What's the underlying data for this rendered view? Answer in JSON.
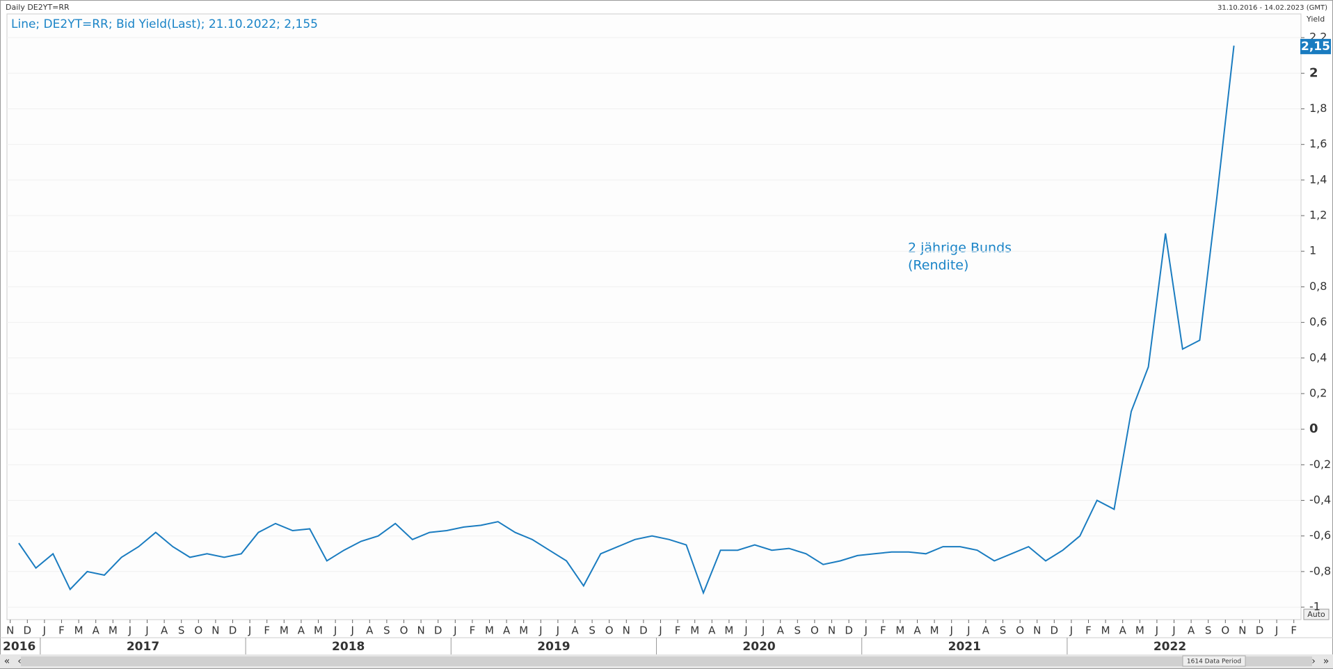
{
  "chart_data": {
    "type": "line",
    "header": "Daily DE2YT=RR",
    "date_range": "31.10.2016 - 14.02.2023 (GMT)",
    "title": "Line; DE2YT=RR; Bid Yield(Last); 21.10.2022; 2,155",
    "y_label": "Yield",
    "annotation": [
      "2 jährige Bunds",
      "(Rendite)"
    ],
    "auto_button": "Auto",
    "data_period": "1614 Data Period",
    "color": "#1a7cc0",
    "x": [
      "2016-11",
      "2016-12",
      "2017-01",
      "2017-02",
      "2017-03",
      "2017-04",
      "2017-05",
      "2017-06",
      "2017-07",
      "2017-08",
      "2017-09",
      "2017-10",
      "2017-11",
      "2017-12",
      "2018-01",
      "2018-02",
      "2018-03",
      "2018-04",
      "2018-05",
      "2018-06",
      "2018-07",
      "2018-08",
      "2018-09",
      "2018-10",
      "2018-11",
      "2018-12",
      "2019-01",
      "2019-02",
      "2019-03",
      "2019-04",
      "2019-05",
      "2019-06",
      "2019-07",
      "2019-08",
      "2019-09",
      "2019-10",
      "2019-11",
      "2019-12",
      "2020-01",
      "2020-02",
      "2020-03",
      "2020-04",
      "2020-05",
      "2020-06",
      "2020-07",
      "2020-08",
      "2020-09",
      "2020-10",
      "2020-11",
      "2020-12",
      "2021-01",
      "2021-02",
      "2021-03",
      "2021-04",
      "2021-05",
      "2021-06",
      "2021-07",
      "2021-08",
      "2021-09",
      "2021-10",
      "2021-11",
      "2021-12",
      "2022-01",
      "2022-02",
      "2022-03",
      "2022-04",
      "2022-05",
      "2022-06",
      "2022-07",
      "2022-08",
      "2022-09",
      "2022-10"
    ],
    "values": [
      -0.64,
      -0.78,
      -0.7,
      -0.9,
      -0.8,
      -0.82,
      -0.72,
      -0.66,
      -0.58,
      -0.66,
      -0.72,
      -0.7,
      -0.72,
      -0.7,
      -0.58,
      -0.53,
      -0.57,
      -0.56,
      -0.74,
      -0.68,
      -0.63,
      -0.6,
      -0.53,
      -0.62,
      -0.58,
      -0.57,
      -0.55,
      -0.54,
      -0.52,
      -0.58,
      -0.62,
      -0.68,
      -0.74,
      -0.88,
      -0.7,
      -0.66,
      -0.62,
      -0.6,
      -0.62,
      -0.65,
      -0.92,
      -0.68,
      -0.68,
      -0.65,
      -0.68,
      -0.67,
      -0.7,
      -0.76,
      -0.74,
      -0.71,
      -0.7,
      -0.69,
      -0.69,
      -0.7,
      -0.66,
      -0.66,
      -0.68,
      -0.74,
      -0.7,
      -0.66,
      -0.74,
      -0.68,
      -0.6,
      -0.4,
      -0.45,
      0.1,
      0.35,
      1.1,
      0.45,
      0.5,
      1.3,
      2.155
    ],
    "last_value": {
      "value": 2.15,
      "label": "2,15"
    },
    "ylim": [
      -1.07,
      2.22
    ],
    "yticks": [
      {
        "value": -1,
        "label": "-1"
      },
      {
        "value": -0.8,
        "label": "-0,8"
      },
      {
        "value": -0.6,
        "label": "-0,6"
      },
      {
        "value": -0.4,
        "label": "-0,4"
      },
      {
        "value": -0.2,
        "label": "-0,2"
      },
      0,
      {
        "value": 0.2,
        "label": "0,2"
      },
      {
        "value": 0.4,
        "label": "0,4"
      },
      {
        "value": 0.6,
        "label": "0,6"
      },
      {
        "value": 0.8,
        "label": "0,8"
      },
      1,
      {
        "value": 1.2,
        "label": "1,2"
      },
      {
        "value": 1.4,
        "label": "1,4"
      },
      {
        "value": 1.6,
        "label": "1,6"
      },
      {
        "value": 1.8,
        "label": "1,8"
      },
      2,
      {
        "value": 2.2,
        "label": "2,2"
      }
    ],
    "grid": true,
    "month_labels": [
      "N",
      "D",
      "J",
      "F",
      "M",
      "A",
      "M",
      "J",
      "J",
      "A",
      "S",
      "O",
      "N",
      "D",
      "J",
      "F",
      "M",
      "A",
      "M",
      "J",
      "J",
      "A",
      "S",
      "O",
      "N",
      "D",
      "J",
      "F",
      "M",
      "A",
      "M",
      "J",
      "J",
      "A",
      "S",
      "O",
      "N",
      "D",
      "J",
      "F",
      "M",
      "A",
      "M",
      "J",
      "J",
      "A",
      "S",
      "O",
      "N",
      "D",
      "J",
      "F",
      "M",
      "A",
      "M",
      "J",
      "J",
      "A",
      "S",
      "O",
      "N",
      "D",
      "J",
      "F",
      "M",
      "A",
      "M",
      "J",
      "J",
      "A",
      "S",
      "O",
      "N",
      "D",
      "J",
      "F"
    ],
    "years": [
      "2016",
      "2017",
      "2018",
      "2019",
      "2020",
      "2021",
      "2022"
    ]
  }
}
